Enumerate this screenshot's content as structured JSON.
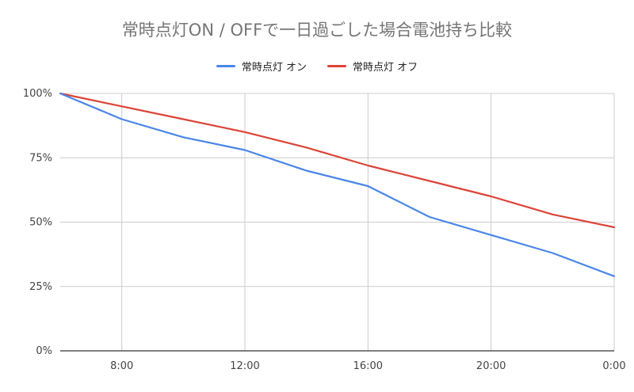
{
  "chart_data": {
    "type": "line",
    "title": "常時点灯ON / OFFで一日過ごした場合電池持ち比較",
    "x": [
      "6:00",
      "8:00",
      "10:00",
      "12:00",
      "14:00",
      "16:00",
      "18:00",
      "20:00",
      "22:00",
      "0:00"
    ],
    "x_ticks": [
      "8:00",
      "12:00",
      "16:00",
      "20:00",
      "0:00"
    ],
    "y_ticks": [
      "100%",
      "75%",
      "50%",
      "25%",
      "0%"
    ],
    "ylim": [
      0,
      100
    ],
    "grid": true,
    "legend_position": "top",
    "series": [
      {
        "name": "常時点灯 オン",
        "color": "#4a86e8",
        "values": [
          100,
          90,
          83,
          78,
          70,
          64,
          52,
          45,
          38,
          29
        ]
      },
      {
        "name": "常時点灯 オフ",
        "color": "#db4437",
        "values": [
          100,
          95,
          90,
          85,
          79,
          72,
          66,
          60,
          53,
          48
        ]
      }
    ]
  }
}
